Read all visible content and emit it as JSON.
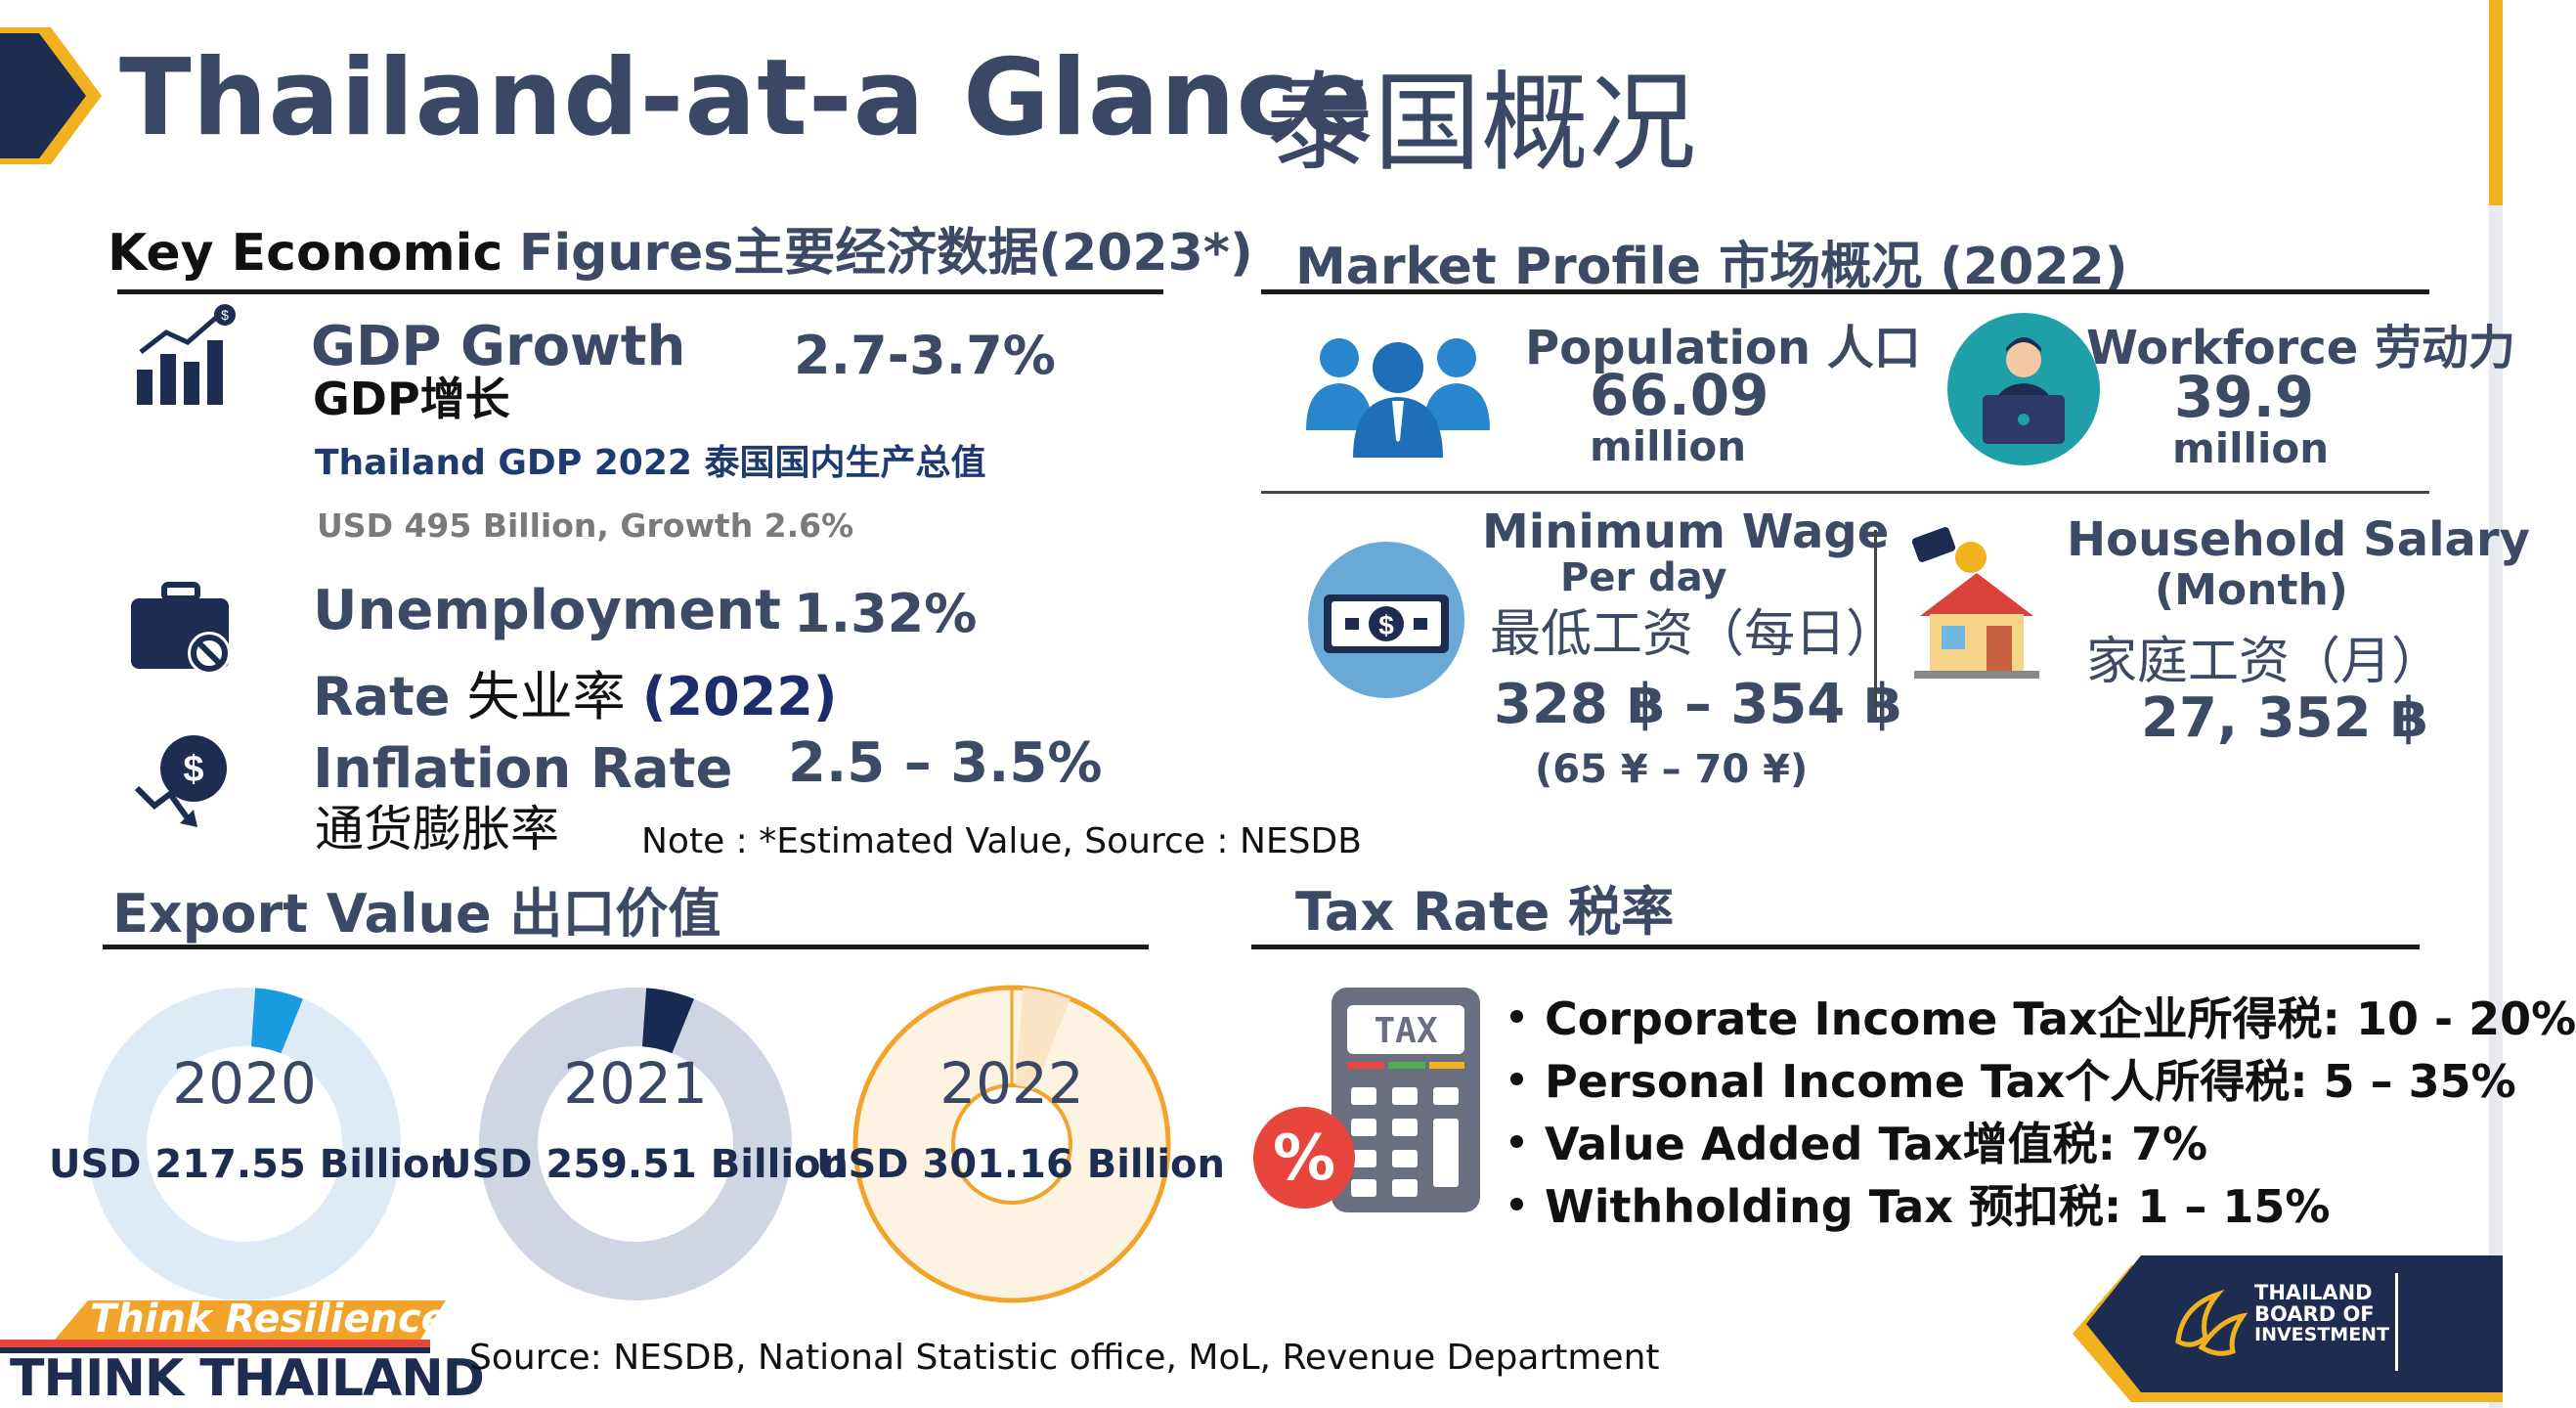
{
  "header": {
    "title_en": "Thailand-at-a Glance",
    "title_cn": "泰国概况"
  },
  "key_economic": {
    "heading_black": "Key Economic",
    "heading_grey": "Figures",
    "heading_cn": "主要经济数据(2023*)",
    "gdp": {
      "label": "GDP Growth",
      "label_cn": "GDP增长",
      "value": "2.7-3.7%",
      "note_title": "Thailand GDP 2022 泰国国内生产总值",
      "note_detail": "USD 495 Billion, Growth 2.6%"
    },
    "unemployment": {
      "label": "Unemployment",
      "label2": "Rate",
      "label_cn": "失业率",
      "year": "(2022)",
      "value": "1.32%"
    },
    "inflation": {
      "label": "Inflation Rate",
      "label_cn": "通货膨胀率",
      "value": "2.5 – 3.5%"
    },
    "note": "Note : *Estimated Value, Source : NESDB"
  },
  "market_profile": {
    "heading": "Market Profile 市场概况 (2022)",
    "population": {
      "label": "Population 人口",
      "value": "66.09",
      "unit": "million"
    },
    "workforce": {
      "label": "Workforce 劳动力",
      "value": "39.9",
      "unit": "million"
    },
    "min_wage": {
      "label": "Minimum Wage",
      "per_day": "Per day",
      "label_cn": "最低工资（每日）",
      "value": "328 ฿ – 354 ฿",
      "value_cny": "(65 ¥ – 70 ¥)"
    },
    "household": {
      "label": "Household Salary",
      "month": "(Month)",
      "label_cn": "家庭工资（月）",
      "value": "27, 352 ฿"
    }
  },
  "export": {
    "heading": "Export  Value 出口价值",
    "items": [
      {
        "year": "2020",
        "amount": "USD 217.55 Billion",
        "ring": "#deebf7",
        "accent": "#1a9be0"
      },
      {
        "year": "2021",
        "amount": "USD 259.51 Billion",
        "ring": "#cfd5e2",
        "accent": "#172a4f"
      },
      {
        "year": "2022",
        "amount": "USD 301.16 Billion",
        "ring": "#fdf3e3",
        "accent": "#fbe3c6"
      }
    ]
  },
  "tax": {
    "heading": "Tax Rate 税率",
    "icon_text": "TAX",
    "percent_symbol": "%",
    "items": [
      "Corporate Income Tax企业所得税: 10 - 20%",
      "Personal Income Tax个人所得税: 5 – 35%",
      "Value Added Tax增值税: 7%",
      "Withholding Tax  预扣税: 1 – 15%"
    ]
  },
  "footer": {
    "think_resilience": "Think Resilience",
    "think_thailand": "THINK THAILAND",
    "source": "Source: NESDB, National Statistic office,  MoL, Revenue  Department",
    "boi_line1": "THAILAND",
    "boi_line2": "BOARD OF",
    "boi_line3": "INVESTMENT"
  }
}
